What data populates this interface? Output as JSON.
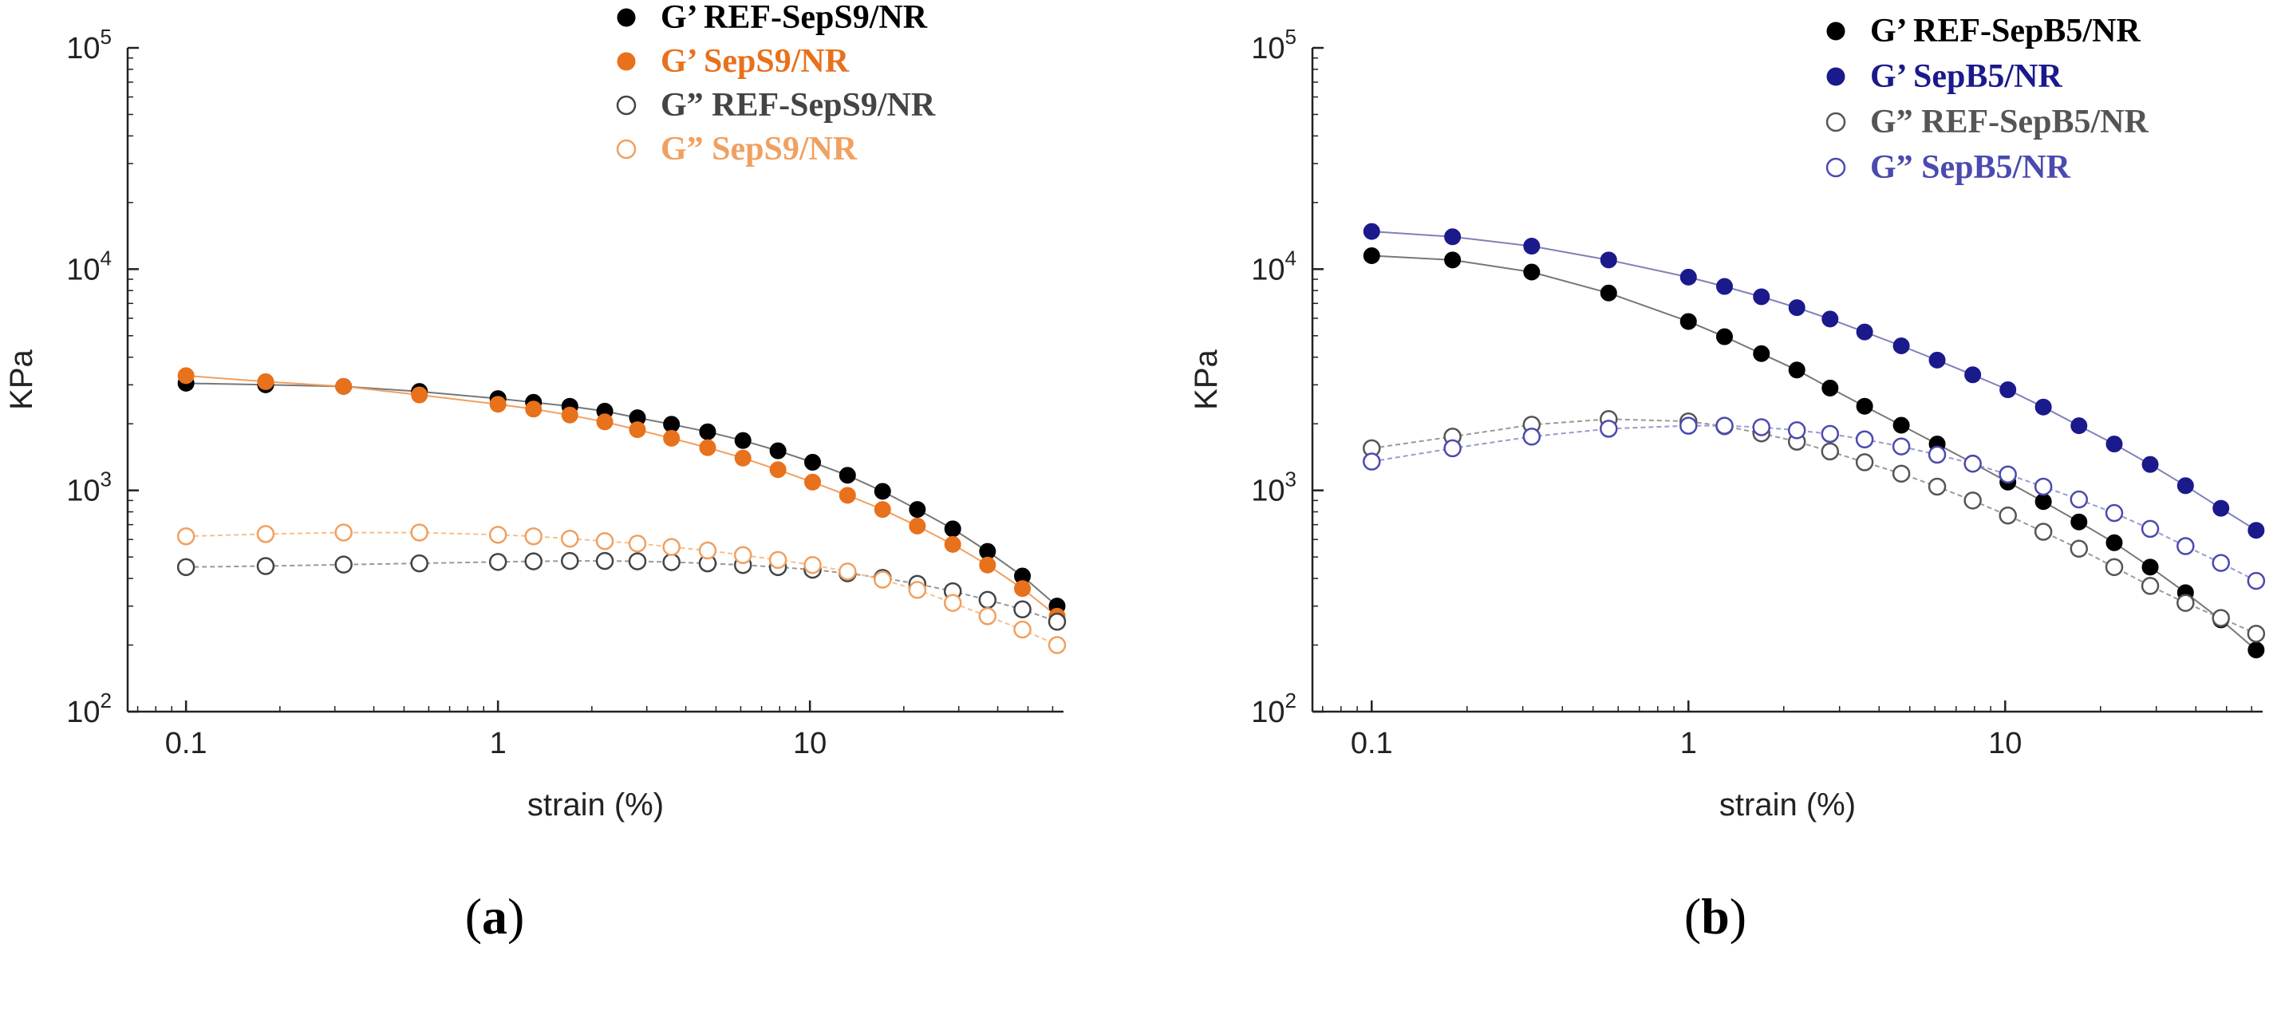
{
  "chart_data": [
    {
      "type": "scatter",
      "panel_label": "(a)",
      "caption": {
        "open": "(",
        "letter": "a",
        "close": ")"
      },
      "xlabel": "strain (%)",
      "ylabel": "KPa",
      "xscale": "log",
      "yscale": "log",
      "xlim": [
        0.065,
        65
      ],
      "ylim": [
        100,
        100000
      ],
      "xticks": [
        0.1,
        1,
        10
      ],
      "xtick_labels": [
        "0.1",
        "1",
        "10"
      ],
      "yticks": [
        100,
        1000,
        10000,
        100000
      ],
      "ytick_labels": [
        {
          "base": "10",
          "exp": "2"
        },
        {
          "base": "10",
          "exp": "3"
        },
        {
          "base": "10",
          "exp": "4"
        },
        {
          "base": "10",
          "exp": "5"
        }
      ],
      "legend_position": "top-right",
      "x": [
        0.1,
        0.18,
        0.32,
        0.56,
        1.0,
        1.3,
        1.7,
        2.2,
        2.8,
        3.6,
        4.7,
        6.1,
        7.9,
        10.2,
        13.2,
        17.1,
        22.1,
        28.7,
        37.1,
        48.0,
        62.0
      ],
      "series": [
        {
          "name": "G’ REF-SepS9/NR",
          "prefix": "G’",
          "label": "REF-SepS9/NR",
          "color": "#000000",
          "filled": true,
          "line_color": "#777777",
          "values": [
            3050,
            3000,
            2950,
            2800,
            2600,
            2500,
            2400,
            2280,
            2130,
            1990,
            1840,
            1680,
            1510,
            1340,
            1170,
            990,
            820,
            670,
            530,
            410,
            300
          ]
        },
        {
          "name": "G’ SepS9/NR",
          "prefix": "G’",
          "label": "SepS9/NR",
          "color": "#e8711c",
          "filled": true,
          "line_color": "#f0a060",
          "values": [
            3300,
            3100,
            2950,
            2700,
            2450,
            2330,
            2190,
            2040,
            1880,
            1720,
            1560,
            1400,
            1240,
            1090,
            950,
            820,
            690,
            570,
            460,
            360,
            270
          ]
        },
        {
          "name": "G” REF-SepS9/NR",
          "prefix": "G”",
          "label": "REF-SepS9/NR",
          "color": "#444444",
          "filled": false,
          "line_color": "#999999",
          "values": [
            450,
            455,
            462,
            468,
            475,
            478,
            480,
            480,
            478,
            474,
            468,
            460,
            450,
            438,
            422,
            402,
            378,
            350,
            320,
            290,
            255
          ]
        },
        {
          "name": "G” SepS9/NR",
          "prefix": "G”",
          "label": "SepS9/NR",
          "color": "#f0a060",
          "filled": false,
          "line_color": "#f5c090",
          "values": [
            620,
            635,
            645,
            645,
            630,
            620,
            605,
            590,
            575,
            555,
            535,
            510,
            485,
            460,
            430,
            395,
            355,
            310,
            270,
            235,
            200
          ]
        }
      ]
    },
    {
      "type": "scatter",
      "panel_label": "(b)",
      "caption": {
        "open": "(",
        "letter": "b",
        "close": ")"
      },
      "xlabel": "strain (%)",
      "ylabel": "KPa",
      "xscale": "log",
      "yscale": "log",
      "xlim": [
        0.065,
        65
      ],
      "ylim": [
        100,
        100000
      ],
      "xticks": [
        0.1,
        1,
        10
      ],
      "xtick_labels": [
        "0.1",
        "1",
        "10"
      ],
      "yticks": [
        100,
        1000,
        10000,
        100000
      ],
      "ytick_labels": [
        {
          "base": "10",
          "exp": "2"
        },
        {
          "base": "10",
          "exp": "3"
        },
        {
          "base": "10",
          "exp": "4"
        },
        {
          "base": "10",
          "exp": "5"
        }
      ],
      "legend_position": "top-right",
      "x": [
        0.1,
        0.18,
        0.32,
        0.56,
        1.0,
        1.3,
        1.7,
        2.2,
        2.8,
        3.6,
        4.7,
        6.1,
        7.9,
        10.2,
        13.2,
        17.1,
        22.1,
        28.7,
        37.1,
        48.0,
        62.0
      ],
      "series": [
        {
          "name": "G’ REF-SepB5/NR",
          "prefix": "G’",
          "label": "REF-SepB5/NR",
          "color": "#000000",
          "filled": true,
          "line_color": "#777777",
          "values": [
            11500,
            11000,
            9700,
            7800,
            5800,
            4950,
            4150,
            3500,
            2900,
            2400,
            1970,
            1620,
            1330,
            1090,
            890,
            720,
            580,
            450,
            345,
            260,
            190
          ]
        },
        {
          "name": "G’ SepB5/NR",
          "prefix": "G’",
          "label": "SepB5/NR",
          "color": "#1a1a8c",
          "filled": true,
          "line_color": "#8080b8",
          "values": [
            14800,
            14000,
            12700,
            11000,
            9200,
            8350,
            7500,
            6700,
            5950,
            5200,
            4500,
            3880,
            3330,
            2850,
            2380,
            1960,
            1620,
            1310,
            1050,
            830,
            660
          ]
        },
        {
          "name": "G” REF-SepB5/NR",
          "prefix": "G”",
          "label": "REF-SepB5/NR",
          "color": "#555555",
          "filled": false,
          "line_color": "#999999",
          "values": [
            1550,
            1750,
            1980,
            2100,
            2050,
            1950,
            1810,
            1660,
            1500,
            1340,
            1190,
            1040,
            900,
            770,
            650,
            545,
            450,
            370,
            310,
            265,
            225
          ]
        },
        {
          "name": "G” SepB5/NR",
          "prefix": "G”",
          "label": "SepB5/NR",
          "color": "#4a4ab0",
          "filled": false,
          "line_color": "#9a9ad0",
          "values": [
            1350,
            1550,
            1750,
            1900,
            1960,
            1960,
            1930,
            1870,
            1800,
            1700,
            1580,
            1450,
            1320,
            1180,
            1040,
            910,
            790,
            670,
            560,
            470,
            390
          ]
        }
      ]
    }
  ]
}
